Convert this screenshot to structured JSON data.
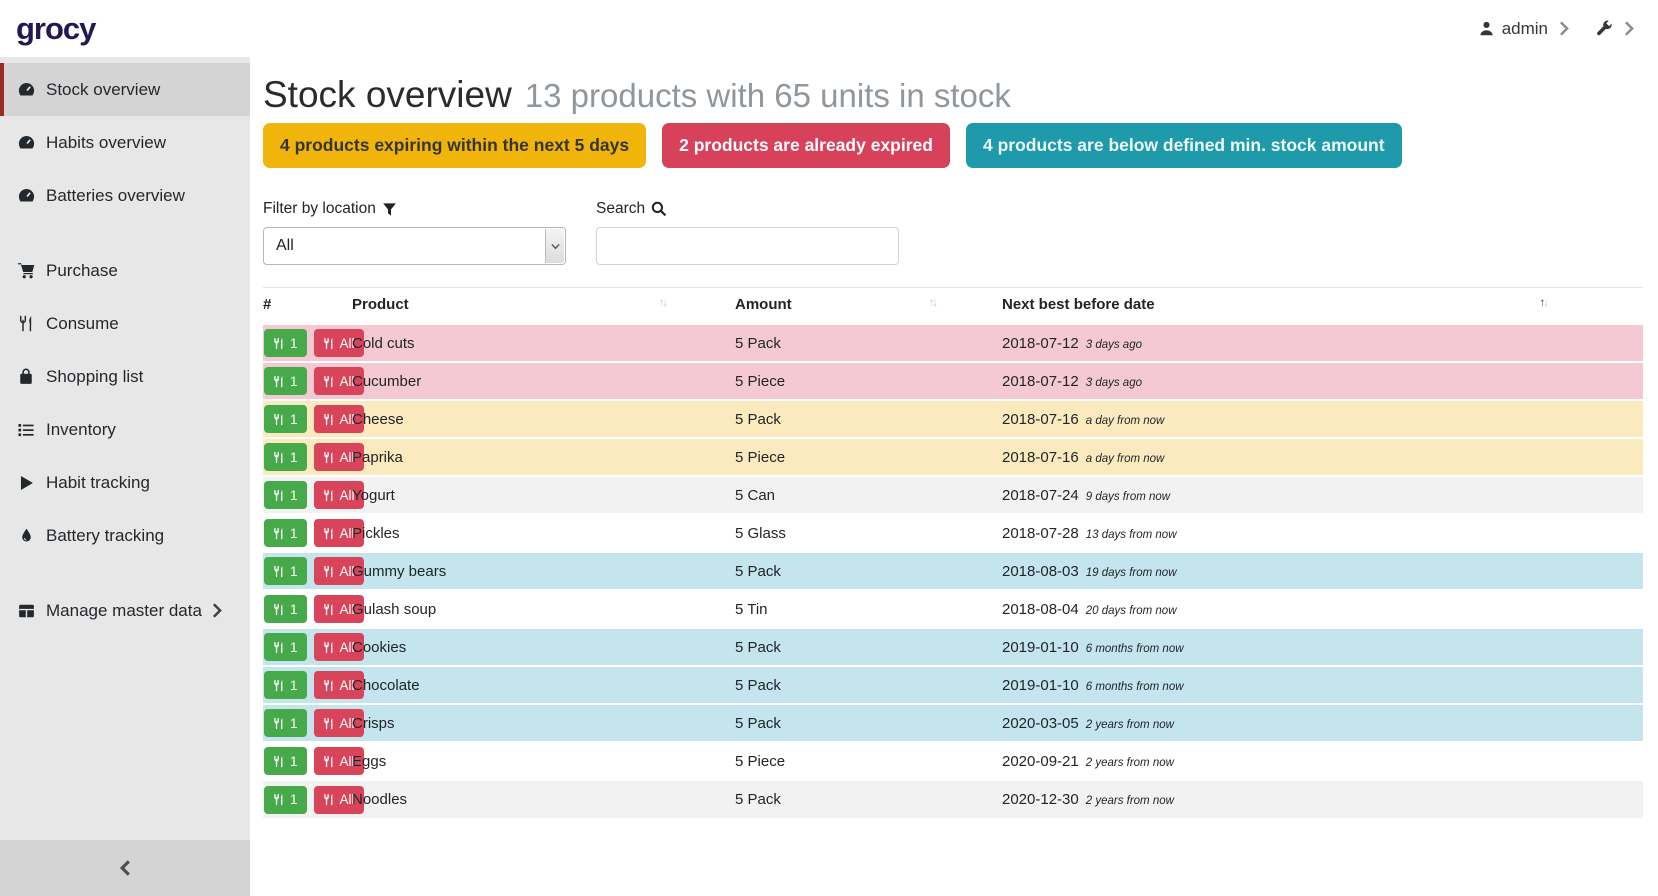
{
  "colors": {
    "logo": "#211a52",
    "sidebar_active_border": "#9c2a25",
    "badge_warning_bg": "#f0b40a",
    "badge_danger_bg": "#d8415a",
    "badge_info_bg": "#1f9aaa",
    "row_expired_bg": "#f4c9d3",
    "row_expiring_bg": "#faeabe",
    "row_below_min_bg": "#c4e4ee",
    "button_consume_one_bg": "#46aa4b",
    "button_consume_all_bg": "#d8455a"
  },
  "header": {
    "logo_text": "grocy",
    "user_label": "admin"
  },
  "sidebar": {
    "groups": [
      {
        "items": [
          {
            "icon": "tachometer-icon",
            "label": "Stock overview",
            "active": true,
            "has_submenu": false
          },
          {
            "icon": "tachometer-icon",
            "label": "Habits overview",
            "active": false,
            "has_submenu": false
          },
          {
            "icon": "tachometer-icon",
            "label": "Batteries overview",
            "active": false,
            "has_submenu": false
          }
        ]
      },
      {
        "items": [
          {
            "icon": "cart-icon",
            "label": "Purchase",
            "active": false,
            "has_submenu": false
          },
          {
            "icon": "utensils-icon",
            "label": "Consume",
            "active": false,
            "has_submenu": false
          },
          {
            "icon": "shopping-bag-icon",
            "label": "Shopping list",
            "active": false,
            "has_submenu": false
          },
          {
            "icon": "list-icon",
            "label": "Inventory",
            "active": false,
            "has_submenu": false
          },
          {
            "icon": "play-icon",
            "label": "Habit tracking",
            "active": false,
            "has_submenu": false
          },
          {
            "icon": "droplet-icon",
            "label": "Battery tracking",
            "active": false,
            "has_submenu": false
          }
        ]
      },
      {
        "items": [
          {
            "icon": "table-icon",
            "label": "Manage master data",
            "active": false,
            "has_submenu": true
          }
        ]
      }
    ]
  },
  "page": {
    "title": "Stock overview",
    "subtitle": "13 products with 65 units in stock"
  },
  "alerts": [
    {
      "type": "warning",
      "text": "4 products expiring within the next 5 days"
    },
    {
      "type": "danger",
      "text": "2 products are already expired"
    },
    {
      "type": "info",
      "text": "4 products are below defined min. stock amount"
    }
  ],
  "filters": {
    "location_label": "Filter by location",
    "location_value": "All",
    "search_label": "Search",
    "search_value": ""
  },
  "table": {
    "columns": [
      "#",
      "Product",
      "Amount",
      "Next best before date"
    ],
    "sorted_by": "Next best before date",
    "sort_direction": "ascending",
    "consume_one_label": "1",
    "consume_all_label": "All",
    "rows": [
      {
        "product": "Cold cuts",
        "amount": "5 Pack",
        "best_before": "2018-07-12",
        "due_note": "3 days ago",
        "status": "expired"
      },
      {
        "product": "Cucumber",
        "amount": "5 Piece",
        "best_before": "2018-07-12",
        "due_note": "3 days ago",
        "status": "expired"
      },
      {
        "product": "Cheese",
        "amount": "5 Pack",
        "best_before": "2018-07-16",
        "due_note": "a day from now",
        "status": "expiring"
      },
      {
        "product": "Paprika",
        "amount": "5 Piece",
        "best_before": "2018-07-16",
        "due_note": "a day from now",
        "status": "expiring"
      },
      {
        "product": "Yogurt",
        "amount": "5 Can",
        "best_before": "2018-07-24",
        "due_note": "9 days from now",
        "status": "none"
      },
      {
        "product": "Pickles",
        "amount": "5 Glass",
        "best_before": "2018-07-28",
        "due_note": "13 days from now",
        "status": "none"
      },
      {
        "product": "Gummy bears",
        "amount": "5 Pack",
        "best_before": "2018-08-03",
        "due_note": "19 days from now",
        "status": "below-min"
      },
      {
        "product": "Gulash soup",
        "amount": "5 Tin",
        "best_before": "2018-08-04",
        "due_note": "20 days from now",
        "status": "none"
      },
      {
        "product": "Cookies",
        "amount": "5 Pack",
        "best_before": "2019-01-10",
        "due_note": "6 months from now",
        "status": "below-min"
      },
      {
        "product": "Chocolate",
        "amount": "5 Pack",
        "best_before": "2019-01-10",
        "due_note": "6 months from now",
        "status": "below-min"
      },
      {
        "product": "Crisps",
        "amount": "5 Pack",
        "best_before": "2020-03-05",
        "due_note": "2 years from now",
        "status": "below-min"
      },
      {
        "product": "Eggs",
        "amount": "5 Piece",
        "best_before": "2020-09-21",
        "due_note": "2 years from now",
        "status": "none"
      },
      {
        "product": "Noodles",
        "amount": "5 Pack",
        "best_before": "2020-12-30",
        "due_note": "2 years from now",
        "status": "none"
      }
    ]
  }
}
